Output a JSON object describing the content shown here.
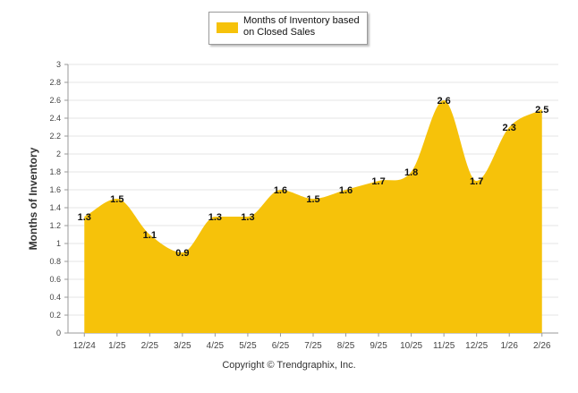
{
  "chart_data": {
    "type": "area",
    "categories": [
      "12/24",
      "1/25",
      "2/25",
      "3/25",
      "4/25",
      "5/25",
      "6/25",
      "7/25",
      "8/25",
      "9/25",
      "10/25",
      "11/25",
      "12/25",
      "1/26",
      "2/26"
    ],
    "series": [
      {
        "name": "Months of Inventory based on Closed Sales",
        "values": [
          1.3,
          1.5,
          1.1,
          0.9,
          1.3,
          1.3,
          1.6,
          1.5,
          1.6,
          1.7,
          1.8,
          2.6,
          1.7,
          2.3,
          2.5
        ],
        "labels": [
          "1.3",
          "1.5",
          "1.1",
          "0.9",
          "1.3",
          "1.3",
          "1.6",
          "1.5",
          "1.6",
          "1.7",
          "1.8",
          "2.6",
          "1.7",
          "2.3",
          "2.5"
        ]
      }
    ],
    "ylabel": "Months of Inventory",
    "xlabel": "",
    "ylim": [
      0,
      3
    ],
    "yticks": [
      "0",
      "0.2",
      "0.4",
      "0.6",
      "0.8",
      "1",
      "1.2",
      "1.4",
      "1.6",
      "1.8",
      "2",
      "2.2",
      "2.4",
      "2.6",
      "2.8",
      "3"
    ],
    "grid": true,
    "legend": "top-center",
    "colors": {
      "fill": "#F6C20A",
      "grid": "#e6e6e6",
      "axis": "#9a9a9a"
    }
  },
  "legend": {
    "label": "Months of Inventory based on Closed Sales"
  },
  "footer": {
    "copyright": "Copyright © Trendgraphix, Inc."
  }
}
